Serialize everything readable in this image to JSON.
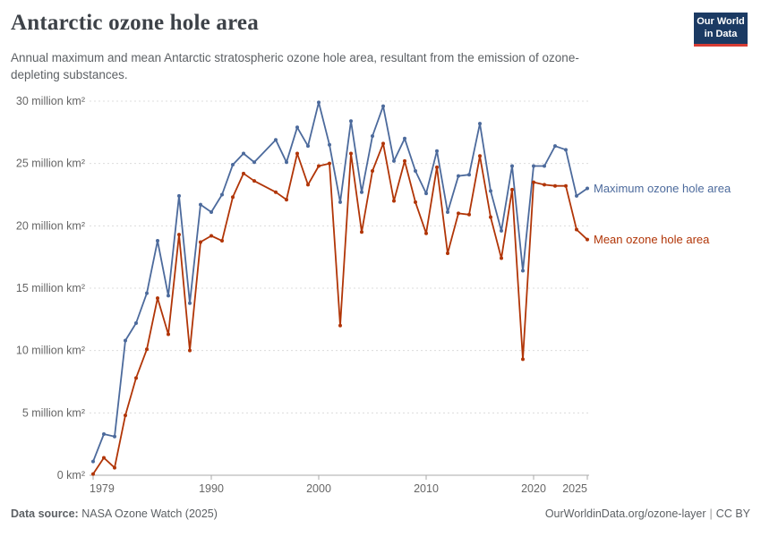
{
  "header": {
    "logo": {
      "line1": "Our World",
      "line2": "in Data"
    }
  },
  "footer": {
    "source_label": "Data source:",
    "source_value": "NASA Ozone Watch (2025)",
    "url": "OurWorldinData.org/ozone-layer",
    "separator": "|",
    "license": "CC BY"
  },
  "chart_data": {
    "type": "line",
    "title": "Antarctic ozone hole area",
    "subtitle": "Annual maximum and mean Antarctic stratospheric ozone hole area, resultant from the emission of ozone-depleting substances.",
    "unit": "million km²",
    "x": [
      1979,
      1980,
      1981,
      1982,
      1983,
      1984,
      1985,
      1986,
      1987,
      1988,
      1989,
      1990,
      1991,
      1992,
      1993,
      1994,
      1995,
      1996,
      1997,
      1998,
      1999,
      2000,
      2001,
      2002,
      2003,
      2004,
      2005,
      2006,
      2007,
      2008,
      2009,
      2010,
      2011,
      2012,
      2013,
      2014,
      2015,
      2016,
      2017,
      2018,
      2019,
      2020,
      2021,
      2022,
      2023,
      2024,
      2025
    ],
    "xlim": [
      1979,
      2025
    ],
    "ylim": [
      0,
      30
    ],
    "xticks": [
      1979,
      1990,
      2000,
      2010,
      2020,
      2025
    ],
    "yticks": [
      {
        "value": 30,
        "label": "30 million km²"
      },
      {
        "value": 25,
        "label": "25 million km²"
      },
      {
        "value": 20,
        "label": "20 million km²"
      },
      {
        "value": 15,
        "label": "15 million km²"
      },
      {
        "value": 10,
        "label": "10 million km²"
      },
      {
        "value": 5,
        "label": "5 million km²"
      },
      {
        "value": 0,
        "label": "0 km²"
      }
    ],
    "grid": "horizontal-dashed",
    "legend_position": "line-end-labels",
    "series": [
      {
        "name": "Maximum ozone hole area",
        "color": "#4C6A9C",
        "values": [
          1.1,
          3.3,
          3.1,
          10.8,
          12.2,
          14.6,
          18.8,
          14.4,
          22.4,
          13.8,
          21.7,
          21.1,
          22.5,
          24.9,
          25.8,
          25.1,
          null,
          26.9,
          25.1,
          27.9,
          26.4,
          29.9,
          26.5,
          21.9,
          28.4,
          22.7,
          27.2,
          29.6,
          25.2,
          27.0,
          24.4,
          22.6,
          26.0,
          21.1,
          24.0,
          24.1,
          28.2,
          22.8,
          19.6,
          24.8,
          16.4,
          24.8,
          24.8,
          26.4,
          26.1,
          22.4,
          23.0
        ]
      },
      {
        "name": "Mean ozone hole area",
        "color": "#B13507",
        "values": [
          0.1,
          1.4,
          0.6,
          4.8,
          7.8,
          10.1,
          14.2,
          11.3,
          19.3,
          10.0,
          18.7,
          19.2,
          18.8,
          22.3,
          24.2,
          23.6,
          null,
          22.7,
          22.1,
          25.8,
          23.3,
          24.8,
          25.0,
          12.0,
          25.8,
          19.5,
          24.4,
          26.6,
          22.0,
          25.2,
          21.9,
          19.4,
          24.7,
          17.8,
          21.0,
          20.9,
          25.6,
          20.7,
          17.4,
          22.9,
          9.3,
          23.5,
          23.3,
          23.2,
          23.2,
          19.7,
          18.9
        ]
      }
    ]
  }
}
